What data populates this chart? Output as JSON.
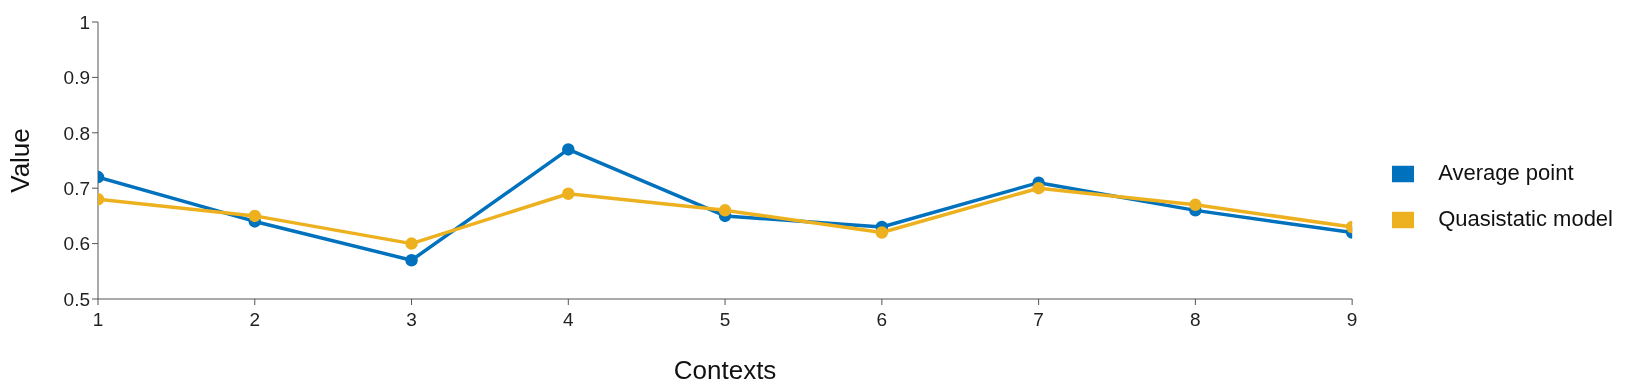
{
  "chart_data": {
    "type": "line",
    "xlabel": "Contexts",
    "ylabel": "Value",
    "x": [
      1,
      2,
      3,
      4,
      5,
      6,
      7,
      8,
      9
    ],
    "xlim": [
      1,
      9
    ],
    "xticks": [
      1,
      2,
      3,
      4,
      5,
      6,
      7,
      8,
      9
    ],
    "ylim": [
      0.5,
      1
    ],
    "yticks": [
      0.5,
      0.6,
      0.7,
      0.8,
      0.9,
      1
    ],
    "series": [
      {
        "name": "Average point",
        "color": "#0072bd",
        "values": [
          0.72,
          0.64,
          0.57,
          0.77,
          0.65,
          0.63,
          0.71,
          0.66,
          0.62
        ]
      },
      {
        "name": "Quasistatic model",
        "color": "#edb120",
        "values": [
          0.68,
          0.65,
          0.6,
          0.69,
          0.66,
          0.62,
          0.7,
          0.67,
          0.63
        ]
      }
    ],
    "grid": false,
    "legend": "right",
    "marker": "circle",
    "line_style": "solid"
  }
}
